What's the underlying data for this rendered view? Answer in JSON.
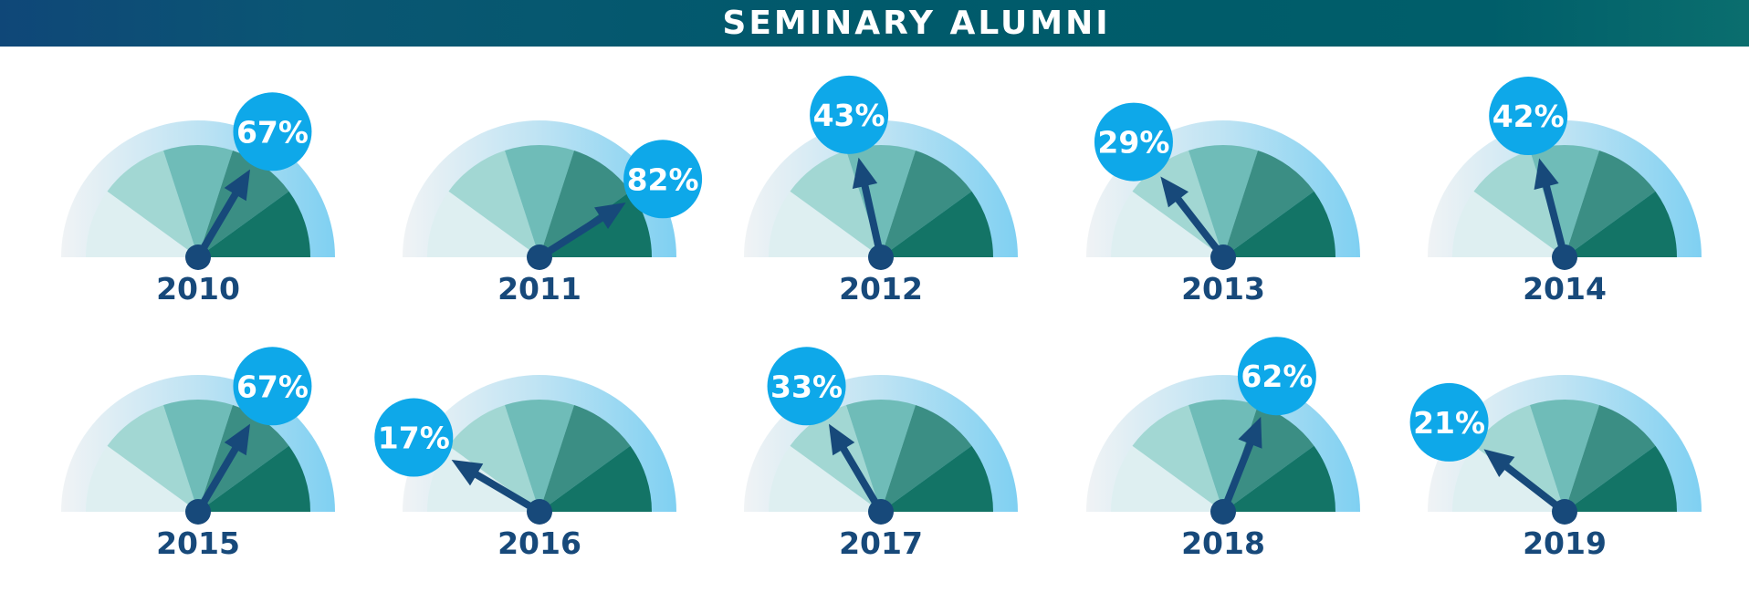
{
  "header": {
    "title": "SEMINARY ALUMNI"
  },
  "chart_data": {
    "type": "gauge",
    "title": "SEMINARY ALUMNI",
    "unit": "%",
    "range": [
      0,
      100
    ],
    "categories": [
      "2010",
      "2011",
      "2012",
      "2013",
      "2014",
      "2015",
      "2016",
      "2017",
      "2018",
      "2019"
    ],
    "values": [
      67,
      82,
      43,
      29,
      42,
      67,
      17,
      33,
      62,
      21
    ],
    "labels": [
      "67%",
      "82%",
      "43%",
      "29%",
      "42%",
      "67%",
      "17%",
      "33%",
      "62%",
      "21%"
    ],
    "segment_colors": [
      "#deeff1",
      "#a2d7d3",
      "#6fbcb8",
      "#3b8e84",
      "#137466"
    ],
    "arc_colors": [
      "#f0f3f5",
      "#bee3f3",
      "#7fd0f2"
    ],
    "needle_color": "#17497a",
    "bubble_color": "#0ea8e9"
  }
}
